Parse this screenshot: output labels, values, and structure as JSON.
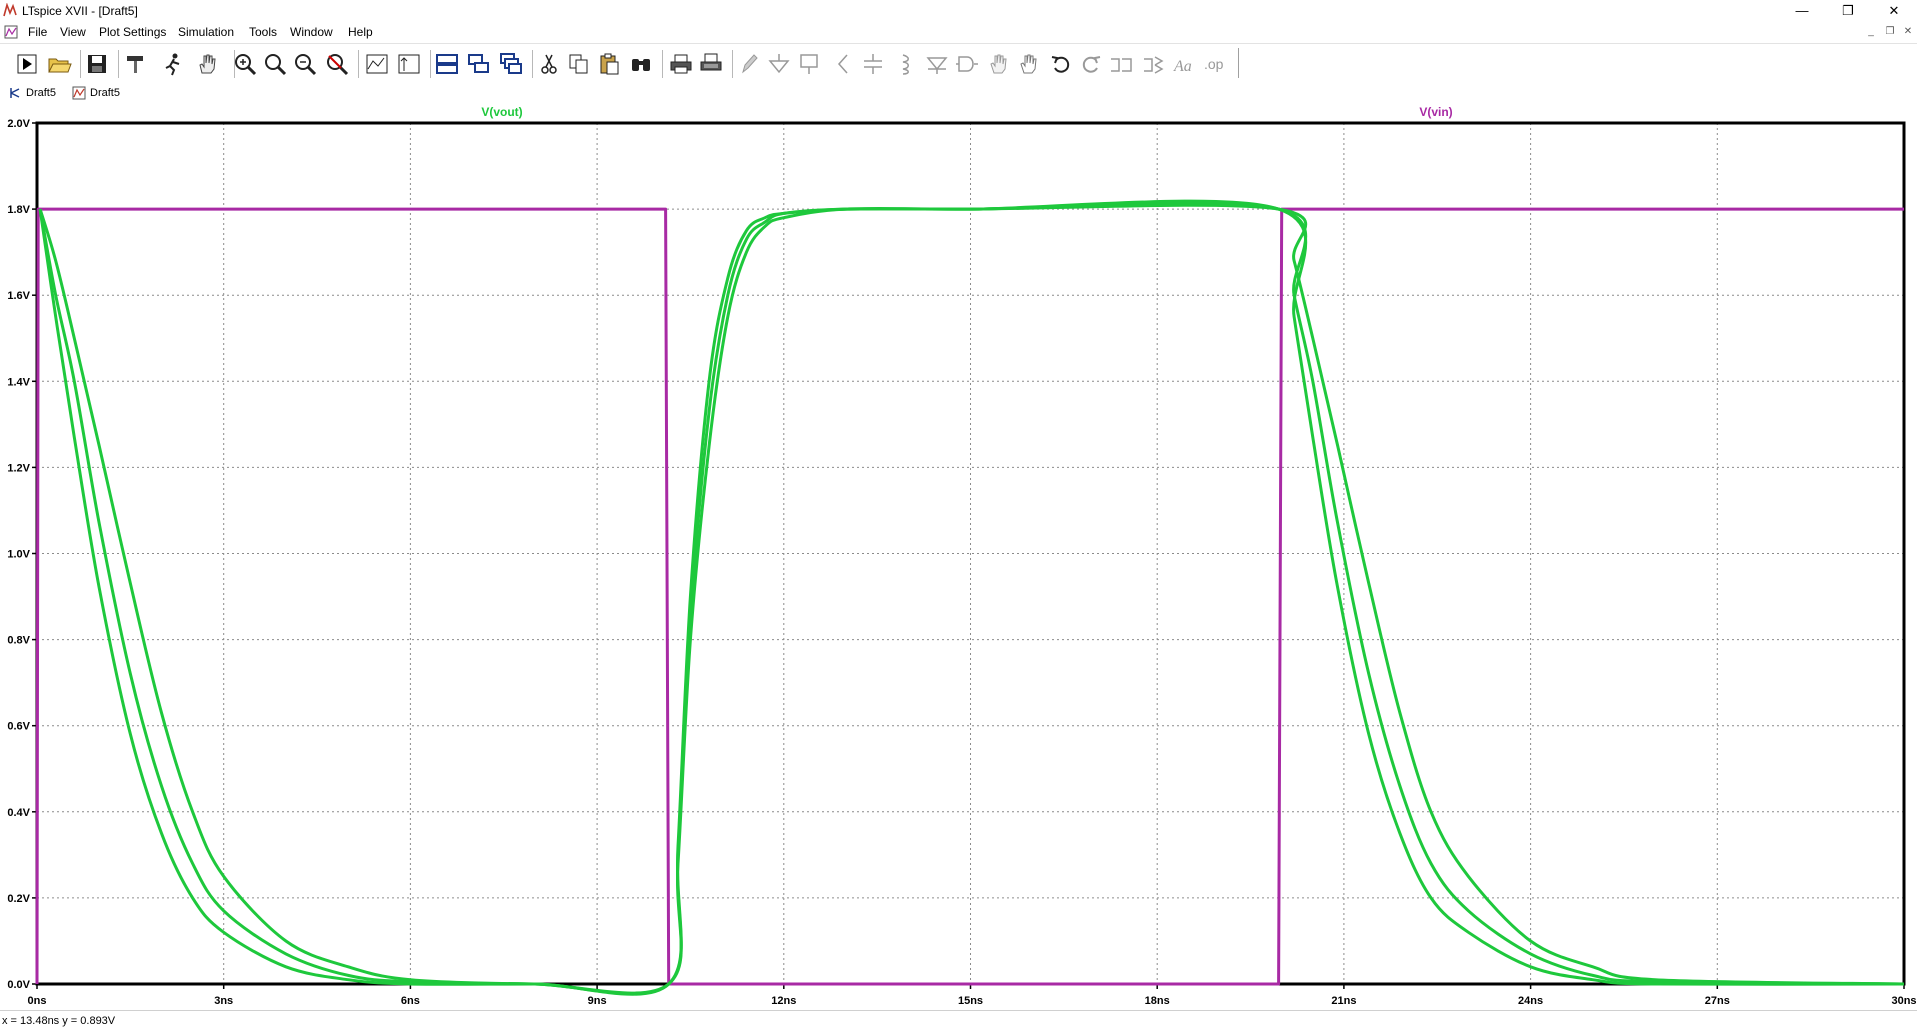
{
  "window": {
    "title": "LTspice XVII - [Draft5]",
    "minimize": "—",
    "maximize": "❐",
    "close": "✕"
  },
  "menu": {
    "items": [
      "File",
      "View",
      "Plot Settings",
      "Simulation",
      "Tools",
      "Window",
      "Help"
    ]
  },
  "mdi": {
    "minimize": "_",
    "restore": "❐",
    "close": "✕"
  },
  "tabs": [
    {
      "label": "Draft5",
      "icon": "schematic-icon"
    },
    {
      "label": "Draft5",
      "icon": "waveform-icon"
    }
  ],
  "status": {
    "cursor": "x = 13.48ns    y = 0.893V"
  },
  "colors": {
    "vout": "#1ec83c",
    "vin": "#a82aa4",
    "grid": "#8c8c8c",
    "axis": "#000000"
  },
  "chart_data": {
    "type": "line",
    "xlim": [
      0,
      30
    ],
    "ylim": [
      0,
      2.0
    ],
    "xticks": [
      "0ns",
      "3ns",
      "6ns",
      "9ns",
      "12ns",
      "15ns",
      "18ns",
      "21ns",
      "24ns",
      "27ns",
      "30ns"
    ],
    "yticks": [
      "0.0V",
      "0.2V",
      "0.4V",
      "0.6V",
      "0.8V",
      "1.0V",
      "1.2V",
      "1.4V",
      "1.6V",
      "1.8V",
      "2.0V"
    ],
    "grid": true,
    "trace_labels": [
      "V(vout)",
      "V(vin)"
    ],
    "series": [
      {
        "name": "V(vin)",
        "x": [
          0,
          0.02,
          10.1,
          10.15,
          19.95,
          20.0,
          30
        ],
        "y": [
          0,
          1.8,
          1.8,
          0,
          0,
          1.8,
          1.8
        ]
      },
      {
        "name": "V(vout)",
        "x": [
          0.05,
          0.3,
          0.6,
          1.0,
          1.5,
          2.0,
          2.5,
          3.0,
          4.0,
          5.0,
          6.0,
          8.0,
          10.15,
          10.3,
          10.5,
          10.8,
          11.1,
          11.4,
          11.7,
          12.0,
          13.0,
          15.0,
          19.95,
          20.2,
          20.5,
          20.9,
          21.4,
          21.9,
          22.4,
          23.0,
          24.0,
          25.0,
          26.0,
          30.0
        ],
        "y": [
          1.8,
          1.55,
          1.27,
          0.92,
          0.58,
          0.35,
          0.2,
          0.12,
          0.04,
          0.01,
          0.0,
          0.0,
          0.0,
          0.32,
          0.9,
          1.4,
          1.64,
          1.75,
          1.78,
          1.79,
          1.8,
          1.8,
          1.8,
          1.55,
          1.27,
          0.92,
          0.58,
          0.35,
          0.2,
          0.12,
          0.04,
          0.01,
          0.0,
          0.0
        ]
      },
      {
        "name": "V(vout)",
        "x": [
          0.05,
          0.3,
          0.6,
          1.0,
          1.5,
          2.0,
          2.5,
          3.0,
          4.0,
          5.0,
          6.0,
          8.0,
          10.15,
          10.3,
          10.5,
          10.8,
          11.1,
          11.4,
          11.7,
          12.0,
          13.0,
          15.0,
          19.95,
          20.2,
          20.5,
          20.9,
          21.4,
          21.9,
          22.4,
          23.0,
          24.0,
          25.0,
          26.0,
          30.0
        ],
        "y": [
          1.8,
          1.6,
          1.4,
          1.07,
          0.72,
          0.46,
          0.28,
          0.17,
          0.07,
          0.02,
          0.005,
          0.0,
          0.0,
          0.3,
          0.85,
          1.33,
          1.6,
          1.73,
          1.77,
          1.79,
          1.8,
          1.8,
          1.8,
          1.6,
          1.4,
          1.07,
          0.72,
          0.46,
          0.28,
          0.17,
          0.07,
          0.02,
          0.005,
          0.0
        ]
      },
      {
        "name": "V(vout)",
        "x": [
          0.05,
          0.3,
          0.6,
          1.0,
          1.5,
          2.0,
          2.5,
          3.0,
          4.0,
          5.0,
          6.0,
          8.0,
          10.15,
          10.3,
          10.5,
          10.8,
          11.1,
          11.4,
          11.7,
          12.0,
          13.0,
          15.0,
          19.95,
          20.2,
          20.5,
          20.9,
          21.4,
          21.9,
          22.4,
          23.0,
          24.0,
          25.0,
          26.0,
          30.0
        ],
        "y": [
          1.8,
          1.68,
          1.5,
          1.25,
          0.93,
          0.63,
          0.4,
          0.25,
          0.1,
          0.04,
          0.01,
          0.0,
          0.0,
          0.28,
          0.8,
          1.25,
          1.55,
          1.7,
          1.76,
          1.78,
          1.8,
          1.8,
          1.8,
          1.68,
          1.5,
          1.25,
          0.93,
          0.63,
          0.4,
          0.25,
          0.1,
          0.04,
          0.01,
          0.0
        ]
      }
    ]
  }
}
